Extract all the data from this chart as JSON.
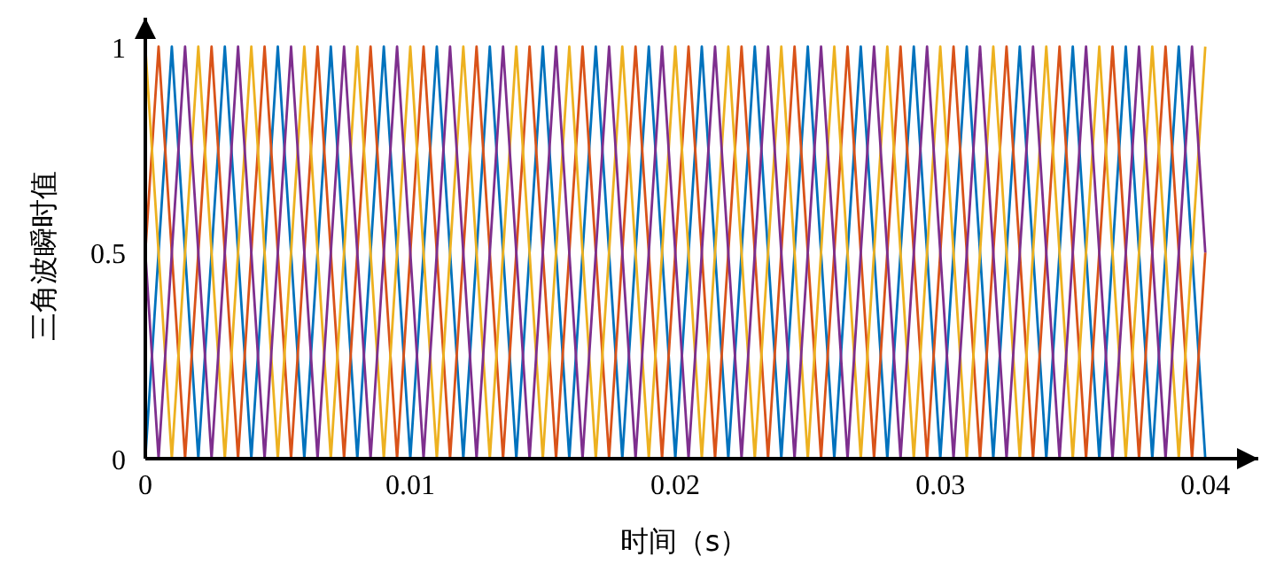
{
  "chart_data": {
    "type": "line",
    "xlabel": "时间（s）",
    "ylabel": "三角波瞬时值",
    "xlim": [
      0,
      0.042
    ],
    "ylim": [
      0,
      1.07
    ],
    "xticks": [
      0,
      0.01,
      0.02,
      0.03,
      0.04
    ],
    "yticks": [
      0,
      0.5,
      1
    ],
    "grid": false,
    "marker": "none",
    "line_style": "solid",
    "x": [
      0,
      0.001,
      0.002,
      0.003,
      0.004,
      0.005,
      0.006,
      0.007,
      0.008,
      0.009,
      0.01,
      0.011,
      0.012,
      0.013,
      0.014,
      0.015,
      0.016,
      0.017,
      0.018,
      0.019,
      0.02,
      0.021,
      0.022,
      0.023,
      0.024,
      0.025,
      0.026,
      0.027,
      0.028,
      0.029,
      0.03,
      0.031,
      0.032,
      0.033,
      0.034,
      0.035,
      0.036,
      0.037,
      0.038,
      0.039,
      0.04
    ],
    "series": [
      {
        "color": "#0072bd",
        "values": [
          0,
          1,
          0,
          1,
          0,
          1,
          0,
          1,
          0,
          1,
          0,
          1,
          0,
          1,
          0,
          1,
          0,
          1,
          0,
          1,
          0,
          1,
          0,
          1,
          0,
          1,
          0,
          1,
          0,
          1,
          0,
          1,
          0,
          1,
          0,
          1,
          0,
          1,
          0,
          1,
          0
        ]
      },
      {
        "color": "#d95319",
        "x": [
          0,
          0.0005,
          0.0015,
          0.0025,
          0.0035,
          0.0045,
          0.0055,
          0.0065,
          0.0075,
          0.0085,
          0.0095,
          0.0105,
          0.0115,
          0.0125,
          0.0135,
          0.0145,
          0.0155,
          0.0165,
          0.0175,
          0.0185,
          0.0195,
          0.0205,
          0.0215,
          0.0225,
          0.0235,
          0.0245,
          0.0255,
          0.0265,
          0.0275,
          0.0285,
          0.0295,
          0.0305,
          0.0315,
          0.0325,
          0.0335,
          0.0345,
          0.0355,
          0.0365,
          0.0375,
          0.0385,
          0.0395,
          0.04
        ],
        "values": [
          0.5,
          1,
          0,
          1,
          0,
          1,
          0,
          1,
          0,
          1,
          0,
          1,
          0,
          1,
          0,
          1,
          0,
          1,
          0,
          1,
          0,
          1,
          0,
          1,
          0,
          1,
          0,
          1,
          0,
          1,
          0,
          1,
          0,
          1,
          0,
          1,
          0,
          1,
          0,
          1,
          0,
          0.5
        ]
      },
      {
        "color": "#edb120",
        "values": [
          1,
          0,
          1,
          0,
          1,
          0,
          1,
          0,
          1,
          0,
          1,
          0,
          1,
          0,
          1,
          0,
          1,
          0,
          1,
          0,
          1,
          0,
          1,
          0,
          1,
          0,
          1,
          0,
          1,
          0,
          1,
          0,
          1,
          0,
          1,
          0,
          1,
          0,
          1,
          0,
          1
        ]
      },
      {
        "color": "#7e2f8e",
        "x": [
          0,
          0.0005,
          0.0015,
          0.0025,
          0.0035,
          0.0045,
          0.0055,
          0.0065,
          0.0075,
          0.0085,
          0.0095,
          0.0105,
          0.0115,
          0.0125,
          0.0135,
          0.0145,
          0.0155,
          0.0165,
          0.0175,
          0.0185,
          0.0195,
          0.0205,
          0.0215,
          0.0225,
          0.0235,
          0.0245,
          0.0255,
          0.0265,
          0.0275,
          0.0285,
          0.0295,
          0.0305,
          0.0315,
          0.0325,
          0.0335,
          0.0345,
          0.0355,
          0.0365,
          0.0375,
          0.0385,
          0.0395,
          0.04
        ],
        "values": [
          0.5,
          0,
          1,
          0,
          1,
          0,
          1,
          0,
          1,
          0,
          1,
          0,
          1,
          0,
          1,
          0,
          1,
          0,
          1,
          0,
          1,
          0,
          1,
          0,
          1,
          0,
          1,
          0,
          1,
          0,
          1,
          0,
          1,
          0,
          1,
          0,
          1,
          0,
          1,
          0,
          1,
          0.5
        ]
      }
    ]
  }
}
